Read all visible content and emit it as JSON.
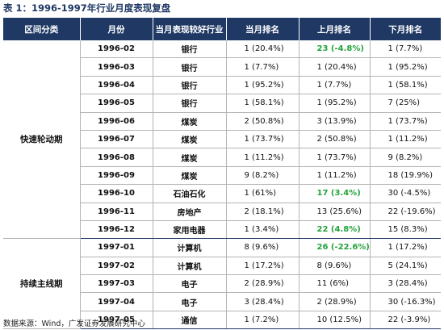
{
  "title": "表 1：1996-1997年行业月度表现复盘",
  "headers": [
    "区间分类",
    "月份",
    "当月表现较好行业",
    "当月排名",
    "上月排名",
    "下月排名"
  ],
  "groups": [
    {
      "label": "快速轮动期",
      "rows": [
        {
          "month": "1996-02",
          "industry": "银行",
          "curr": "1 (20.4%)",
          "prev": "23  (-4.8%)",
          "prev_green": true,
          "next": "1 (7.7%)"
        },
        {
          "month": "1996-03",
          "industry": "银行",
          "curr": "1 (7.7%)",
          "prev": "1 (20.4%)",
          "prev_green": false,
          "next": "1 (95.2%)"
        },
        {
          "month": "1996-04",
          "industry": "银行",
          "curr": "1 (95.2%)",
          "prev": "1 (7.7%)",
          "prev_green": false,
          "next": "1 (58.1%)"
        },
        {
          "month": "1996-05",
          "industry": "银行",
          "curr": "1 (58.1%)",
          "prev": "1 (95.2%)",
          "prev_green": false,
          "next": "7 (25%)"
        },
        {
          "month": "1996-06",
          "industry": "煤炭",
          "curr": "2 (50.8%)",
          "prev": "3 (13.9%)",
          "prev_green": false,
          "next": "1 (73.7%)"
        },
        {
          "month": "1996-07",
          "industry": "煤炭",
          "curr": "1 (73.7%)",
          "prev": "2 (50.8%)",
          "prev_green": false,
          "next": "1 (11.2%)"
        },
        {
          "month": "1996-08",
          "industry": "煤炭",
          "curr": "1 (11.2%)",
          "prev": "1 (73.7%)",
          "prev_green": false,
          "next": "9 (8.2%)"
        },
        {
          "month": "1996-09",
          "industry": "煤炭",
          "curr": "9 (8.2%)",
          "prev": "1 (11.2%)",
          "prev_green": false,
          "next": "18 (19.9%)"
        },
        {
          "month": "1996-10",
          "industry": "石油石化",
          "curr": "1 (61%)",
          "prev": "17 (3.4%)",
          "prev_green": true,
          "next": "30 (-4.5%)"
        },
        {
          "month": "1996-11",
          "industry": "房地产",
          "curr": "2 (18.1%)",
          "prev": "13 (25.6%)",
          "prev_green": false,
          "next": "22 (-19.6%)"
        },
        {
          "month": "1996-12",
          "industry": "家用电器",
          "curr": "1 (3.4%)",
          "prev": "22 (4.8%)",
          "prev_green": true,
          "next": "15 (8.3%)"
        }
      ]
    },
    {
      "label": "持续主线期",
      "rows": [
        {
          "month": "1997-01",
          "industry": "计算机",
          "curr": "8 (9.6%)",
          "prev": "26 (-22.6%)",
          "prev_green": true,
          "next": "1 (17.2%)"
        },
        {
          "month": "1997-02",
          "industry": "计算机",
          "curr": "1 (17.2%)",
          "prev": "8 (9.6%)",
          "prev_green": false,
          "next": "5 (24.1%)"
        },
        {
          "month": "1997-03",
          "industry": "电子",
          "curr": "2 (28.9%)",
          "prev": "11 (6%)",
          "prev_green": false,
          "next": "3 (28.4%)"
        },
        {
          "month": "1997-04",
          "industry": "电子",
          "curr": "3 (28.4%)",
          "prev": "2 (28.9%)",
          "prev_green": false,
          "next": "30 (-16.3%)"
        },
        {
          "month": "1997-05",
          "industry": "通信",
          "curr": "1 (7.2%)",
          "prev": "10 (12.5%)",
          "prev_green": false,
          "next": "22 (-3.9%)"
        }
      ]
    }
  ],
  "source": "数据来源：Wind，广发证券发展研究中心"
}
